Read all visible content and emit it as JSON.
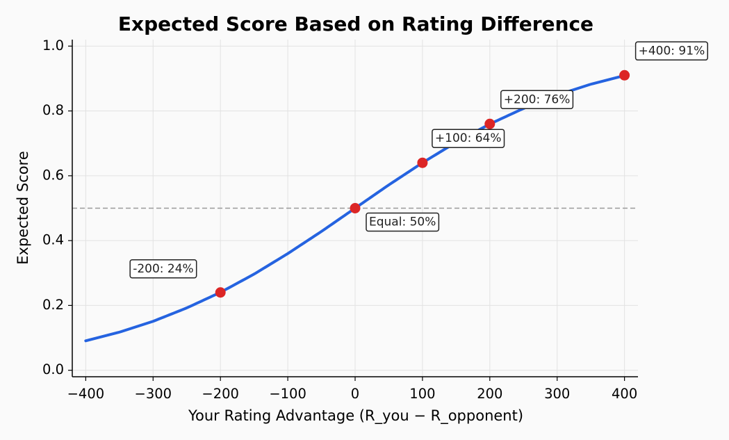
{
  "chart_data": {
    "type": "line",
    "title": "Expected Score Based on Rating Difference",
    "xlabel": "Your Rating Advantage (R_you − R_opponent)",
    "ylabel": "Expected Score",
    "xlim": [
      -420,
      420
    ],
    "ylim": [
      -0.02,
      1.02
    ],
    "x_ticks": [
      -400,
      -300,
      -200,
      -100,
      0,
      100,
      200,
      300,
      400
    ],
    "x_tick_labels": [
      "−400",
      "−300",
      "−200",
      "−100",
      "0",
      "100",
      "200",
      "300",
      "400"
    ],
    "y_ticks": [
      0.0,
      0.2,
      0.4,
      0.6,
      0.8,
      1.0
    ],
    "y_tick_labels": [
      "0.0",
      "0.2",
      "0.4",
      "0.6",
      "0.8",
      "1.0"
    ],
    "grid": true,
    "curve": {
      "x": [
        -400,
        -350,
        -300,
        -250,
        -200,
        -150,
        -100,
        -50,
        0,
        50,
        100,
        150,
        200,
        250,
        300,
        350,
        400
      ],
      "y": [
        0.0909,
        0.1175,
        0.151,
        0.1923,
        0.2403,
        0.2966,
        0.3599,
        0.4282,
        0.5,
        0.5718,
        0.6401,
        0.7034,
        0.7597,
        0.8077,
        0.849,
        0.8825,
        0.9091
      ],
      "color": "#2563e0"
    },
    "reference_line": {
      "y": 0.5,
      "color": "#999999",
      "style": "dashed"
    },
    "points": {
      "x": [
        -200,
        0,
        100,
        200,
        400
      ],
      "y": [
        0.24,
        0.5,
        0.64,
        0.76,
        0.91
      ],
      "color": "#dc2626"
    },
    "annotations": [
      {
        "text": "-200: 24%",
        "x": -200,
        "y": 0.24
      },
      {
        "text": "Equal: 50%",
        "x": 0,
        "y": 0.5
      },
      {
        "text": "+100: 64%",
        "x": 100,
        "y": 0.64
      },
      {
        "text": "+200: 76%",
        "x": 200,
        "y": 0.76
      },
      {
        "text": "+400: 91%",
        "x": 400,
        "y": 0.91
      }
    ]
  }
}
